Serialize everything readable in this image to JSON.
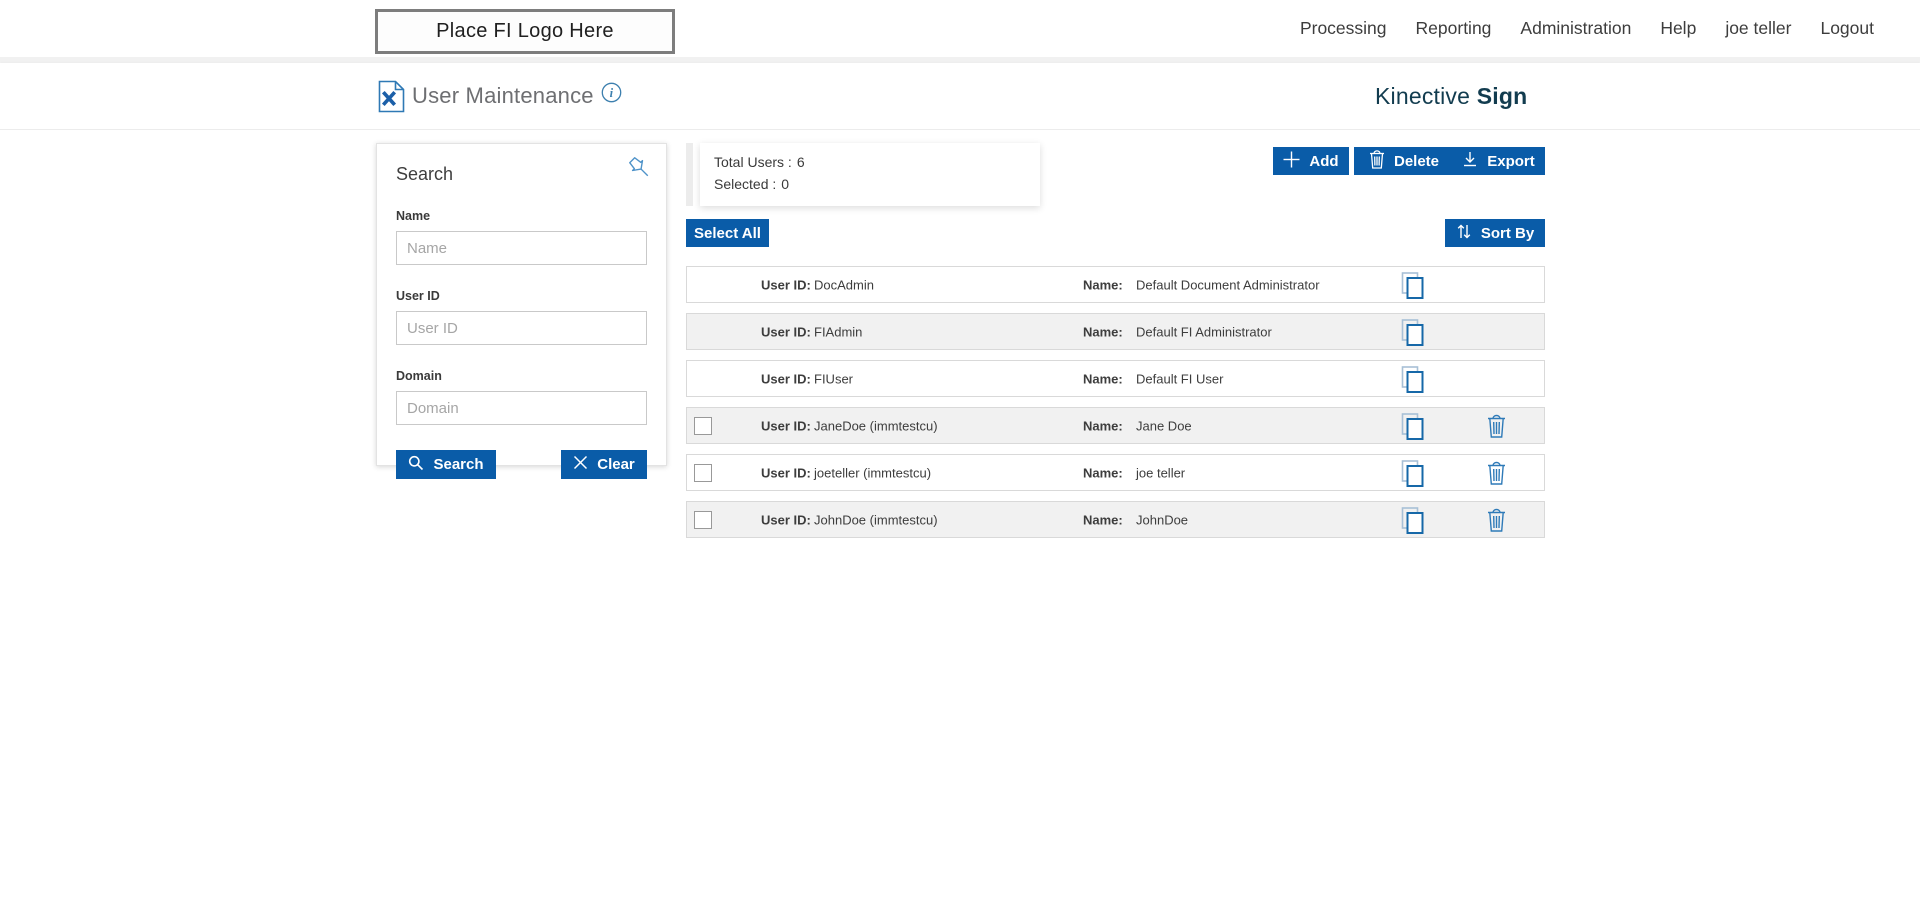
{
  "colors": {
    "primary": "#0a5ca8",
    "brand": "#123c4f",
    "header_title": "#6e6f72"
  },
  "topbar": {
    "logo_placeholder": "Place FI Logo Here",
    "nav_items": [
      "Processing",
      "Reporting",
      "Administration",
      "Help",
      "joe teller",
      "Logout"
    ]
  },
  "header": {
    "title": "User Maintenance",
    "brand_regular": "Kinective",
    "brand_bold": "Sign"
  },
  "search_panel": {
    "title": "Search",
    "fields": [
      {
        "label": "Name",
        "placeholder": "Name",
        "value": ""
      },
      {
        "label": "User ID",
        "placeholder": "User ID",
        "value": ""
      },
      {
        "label": "Domain",
        "placeholder": "Domain",
        "value": ""
      }
    ],
    "buttons": {
      "search": "Search",
      "clear": "Clear"
    }
  },
  "summary": {
    "total_label": "Total Users :",
    "total_value": "6",
    "selected_label": "Selected :",
    "selected_value": "0"
  },
  "toolbar": {
    "add": "Add",
    "delete": "Delete",
    "export": "Export"
  },
  "list_controls": {
    "select_all": "Select All",
    "sort_by": "Sort By"
  },
  "user_list": {
    "labels": {
      "user_id": "User ID:",
      "name": "Name:"
    },
    "users": [
      {
        "user_id": "DocAdmin",
        "name": "Default Document Administrator",
        "selectable": false,
        "deletable": false
      },
      {
        "user_id": "FIAdmin",
        "name": "Default FI Administrator",
        "selectable": false,
        "deletable": false
      },
      {
        "user_id": "FIUser",
        "name": "Default FI User",
        "selectable": false,
        "deletable": false
      },
      {
        "user_id": "JaneDoe (immtestcu)",
        "name": "Jane Doe",
        "selectable": true,
        "deletable": true
      },
      {
        "user_id": "joeteller (immtestcu)",
        "name": "joe teller",
        "selectable": true,
        "deletable": true
      },
      {
        "user_id": "JohnDoe (immtestcu)",
        "name": "JohnDoe",
        "selectable": true,
        "deletable": true
      }
    ]
  }
}
